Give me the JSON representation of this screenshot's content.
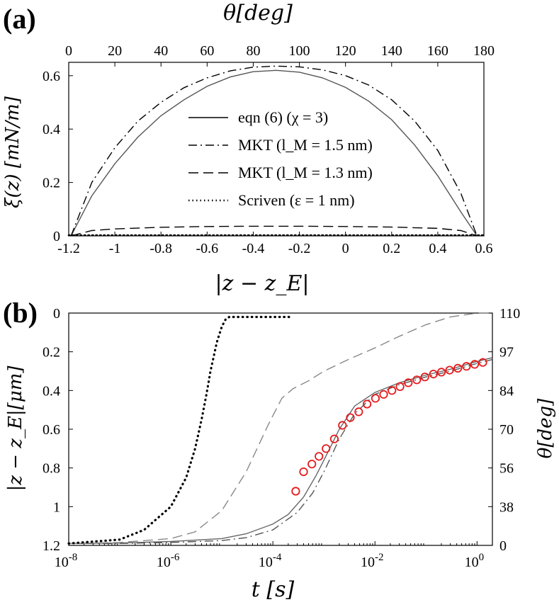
{
  "chart_data": [
    {
      "panel": "(a)",
      "type": "line",
      "xlabel": "|z − z_E|",
      "ylabel": "ξ(z) [mN/m]",
      "x2label": "θ[deg]",
      "xlim": [
        -1.2,
        0.6
      ],
      "ylim": [
        0,
        0.65
      ],
      "x2lim": [
        0,
        180
      ],
      "xticks": [
        "-1.2",
        "-1",
        "-0.8",
        "-0.6",
        "-0.4",
        "-0.2",
        "0",
        "0.2",
        "0.4",
        "0.6"
      ],
      "yticks": [
        "0",
        "0.2",
        "0.4",
        "0.6"
      ],
      "x2ticks": [
        "0",
        "20",
        "40",
        "60",
        "80",
        "100",
        "120",
        "140",
        "160",
        "180"
      ],
      "legend_position": "center",
      "series": [
        {
          "name": "eqn (6)  (χ = 3)",
          "style": "solid",
          "x": [
            -1.19,
            -1.1,
            -1.0,
            -0.9,
            -0.8,
            -0.7,
            -0.6,
            -0.5,
            -0.4,
            -0.3,
            -0.2,
            -0.1,
            0.0,
            0.1,
            0.2,
            0.3,
            0.4,
            0.5,
            0.57
          ],
          "values": [
            0.0,
            0.15,
            0.27,
            0.37,
            0.45,
            0.51,
            0.56,
            0.595,
            0.615,
            0.62,
            0.613,
            0.592,
            0.556,
            0.505,
            0.435,
            0.34,
            0.225,
            0.09,
            0.0
          ]
        },
        {
          "name": "MKT  (l_M = 1.5 nm)",
          "style": "dashdot",
          "x": [
            -1.19,
            -1.1,
            -1.0,
            -0.9,
            -0.8,
            -0.7,
            -0.6,
            -0.5,
            -0.4,
            -0.3,
            -0.2,
            -0.1,
            0.0,
            0.1,
            0.2,
            0.3,
            0.4,
            0.5,
            0.57
          ],
          "values": [
            0.0,
            0.2,
            0.33,
            0.43,
            0.5,
            0.555,
            0.592,
            0.618,
            0.632,
            0.636,
            0.633,
            0.622,
            0.6,
            0.565,
            0.51,
            0.43,
            0.32,
            0.16,
            0.0
          ]
        },
        {
          "name": "MKT  (l_M = 1.3 nm)",
          "style": "dashed",
          "x": [
            -1.19,
            -1.1,
            -1.0,
            -0.8,
            -0.6,
            -0.4,
            -0.2,
            0.0,
            0.2,
            0.4,
            0.5,
            0.57
          ],
          "values": [
            0.0,
            0.02,
            0.026,
            0.032,
            0.035,
            0.036,
            0.036,
            0.035,
            0.033,
            0.028,
            0.02,
            0.0
          ]
        },
        {
          "name": "Scriven  (ε = 1 nm)",
          "style": "dotted",
          "x": [
            -1.2,
            0.6
          ],
          "values": [
            0.002,
            0.002
          ]
        }
      ]
    },
    {
      "panel": "(b)",
      "type": "line",
      "xlabel": "t [s]",
      "ylabel": "|z − z_E|[μm]",
      "y2label": "θ[deg]",
      "xscale": "log",
      "xlim": [
        1e-08,
        2
      ],
      "ylim": [
        0,
        1.2
      ],
      "y_reversed": true,
      "y2lim": [
        0,
        110
      ],
      "xticks": [
        {
          "base": "10",
          "exp": "-8",
          "value": 1e-08
        },
        {
          "base": "10",
          "exp": "-6",
          "value": 1e-06
        },
        {
          "base": "10",
          "exp": "-4",
          "value": 0.0001
        },
        {
          "base": "10",
          "exp": "-2",
          "value": 0.01
        },
        {
          "base": "10",
          "exp": "0",
          "value": 1
        }
      ],
      "yticks": [
        "0",
        "0.2",
        "0.4",
        "0.6",
        "0.8",
        "1",
        "1.2"
      ],
      "y2ticks": [
        "110",
        "97",
        "84",
        "70",
        "56",
        "38",
        "0"
      ],
      "series": [
        {
          "style": "solid",
          "color": "#666666",
          "x": [
            1e-08,
            1e-07,
            1e-06,
            1e-05,
            3e-05,
            0.0001,
            0.0002,
            0.0004,
            0.0007,
            0.001,
            0.002,
            0.004,
            0.01,
            0.03,
            0.1,
            0.3,
            1,
            2
          ],
          "values": [
            1.19,
            1.188,
            1.18,
            1.165,
            1.14,
            1.09,
            1.04,
            0.95,
            0.84,
            0.76,
            0.6,
            0.48,
            0.41,
            0.36,
            0.32,
            0.29,
            0.25,
            0.23
          ]
        },
        {
          "style": "dashdot",
          "color": "#555555",
          "x": [
            1e-08,
            1e-07,
            1e-06,
            1e-05,
            3e-05,
            0.0001,
            0.0003,
            0.0006,
            0.001,
            0.002,
            0.004,
            0.01,
            0.03,
            0.1,
            0.3,
            1,
            2
          ],
          "values": [
            1.19,
            1.19,
            1.185,
            1.175,
            1.16,
            1.12,
            1.03,
            0.93,
            0.82,
            0.65,
            0.52,
            0.42,
            0.37,
            0.33,
            0.3,
            0.26,
            0.24
          ]
        },
        {
          "style": "dashed",
          "color": "#888888",
          "x": [
            1e-08,
            1e-07,
            1e-06,
            3e-06,
            1e-05,
            3e-05,
            8e-05,
            0.00015,
            0.00025,
            0.0005,
            0.001,
            0.003,
            0.01,
            0.03,
            0.1,
            0.3,
            1,
            2
          ],
          "values": [
            1.19,
            1.185,
            1.165,
            1.13,
            1.02,
            0.82,
            0.58,
            0.44,
            0.39,
            0.35,
            0.3,
            0.24,
            0.18,
            0.12,
            0.06,
            0.02,
            0.0,
            0.0
          ]
        },
        {
          "style": "dotted",
          "color": "#000000",
          "x": [
            1e-08,
            1e-07,
            3e-07,
            1e-06,
            2e-06,
            3e-06,
            4e-06,
            5e-06,
            6e-06,
            8e-06,
            1e-05,
            1.2e-05,
            1.4e-05,
            2e-05,
            5e-05,
            0.00025
          ],
          "values": [
            1.19,
            1.17,
            1.12,
            1.0,
            0.85,
            0.7,
            0.55,
            0.42,
            0.3,
            0.15,
            0.07,
            0.03,
            0.02,
            0.02,
            0.02,
            0.02
          ]
        },
        {
          "type": "scatter",
          "marker": "circle-open",
          "color": "#e41a1c",
          "x": [
            0.00028,
            0.0004,
            0.00058,
            0.0008,
            0.0011,
            0.0016,
            0.0023,
            0.0033,
            0.0048,
            0.007,
            0.0102,
            0.0148,
            0.0215,
            0.031,
            0.045,
            0.066,
            0.095,
            0.14,
            0.2,
            0.29,
            0.42,
            0.62,
            0.9,
            1.3
          ],
          "values": [
            0.92,
            0.82,
            0.78,
            0.74,
            0.7,
            0.65,
            0.58,
            0.54,
            0.51,
            0.47,
            0.44,
            0.42,
            0.4,
            0.38,
            0.36,
            0.345,
            0.33,
            0.315,
            0.305,
            0.295,
            0.285,
            0.275,
            0.265,
            0.255
          ]
        }
      ]
    }
  ]
}
